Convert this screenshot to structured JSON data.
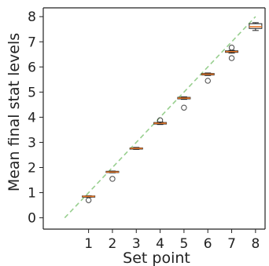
{
  "chart_data": {
    "type": "box",
    "xlabel": "Set point",
    "ylabel": "Mean final stat levels",
    "x_ticks": [
      1,
      2,
      3,
      4,
      5,
      6,
      7,
      8
    ],
    "y_ticks": [
      0,
      1,
      2,
      3,
      4,
      5,
      6,
      7,
      8
    ],
    "xlim": [
      -0.9,
      8.4
    ],
    "ylim": [
      -0.45,
      8.35
    ],
    "grid": false,
    "boxes": [
      {
        "x": 1,
        "q1": 0.83,
        "median": 0.85,
        "q3": 0.87,
        "whisker_low": 0.82,
        "whisker_high": 0.88,
        "outliers": [
          0.7
        ]
      },
      {
        "x": 2,
        "q1": 1.8,
        "median": 1.82,
        "q3": 1.85,
        "whisker_low": 1.79,
        "whisker_high": 1.86,
        "outliers": [
          1.55
        ]
      },
      {
        "x": 3,
        "q1": 2.74,
        "median": 2.76,
        "q3": 2.78,
        "whisker_low": 2.72,
        "whisker_high": 2.8,
        "outliers": []
      },
      {
        "x": 4,
        "q1": 3.73,
        "median": 3.76,
        "q3": 3.79,
        "whisker_low": 3.71,
        "whisker_high": 3.81,
        "outliers": [
          3.88
        ]
      },
      {
        "x": 5,
        "q1": 4.73,
        "median": 4.76,
        "q3": 4.79,
        "whisker_low": 4.71,
        "whisker_high": 4.81,
        "outliers": [
          4.38
        ]
      },
      {
        "x": 6,
        "q1": 5.68,
        "median": 5.71,
        "q3": 5.74,
        "whisker_low": 5.66,
        "whisker_high": 5.76,
        "outliers": [
          5.45
        ]
      },
      {
        "x": 7,
        "q1": 6.58,
        "median": 6.61,
        "q3": 6.64,
        "whisker_low": 6.55,
        "whisker_high": 6.66,
        "outliers": [
          6.77,
          6.35
        ]
      },
      {
        "x": 8,
        "q1": 7.53,
        "median": 7.6,
        "q3": 7.72,
        "whisker_low": 7.45,
        "whisker_high": 7.76,
        "outliers": []
      }
    ],
    "reference_line": {
      "style": "dashed",
      "color": "#98cf8f",
      "from": [
        0,
        0
      ],
      "to": [
        8,
        8
      ]
    },
    "colors": {
      "box_edge": "#222222",
      "box_fill": "#ffffff",
      "median": "#e8782a",
      "outlier": "#444444"
    }
  }
}
